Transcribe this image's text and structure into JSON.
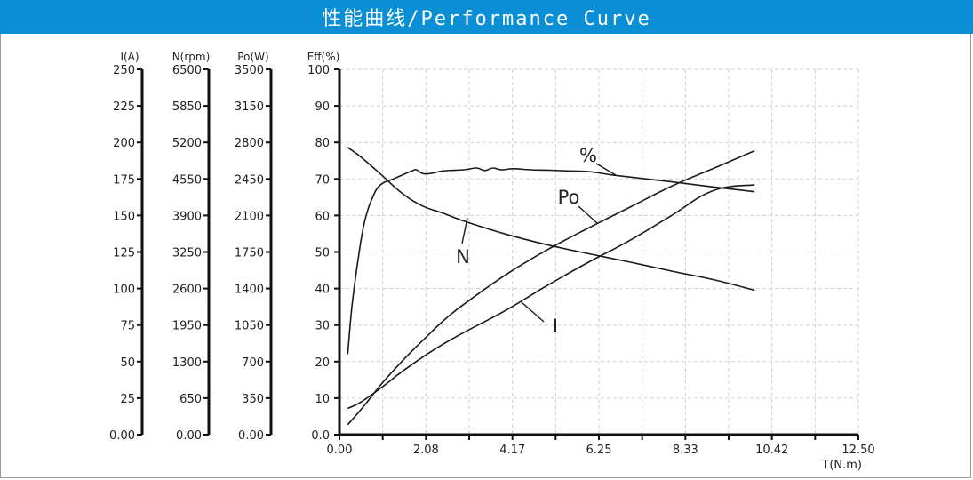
{
  "title": "性能曲线/Performance Curve",
  "chart_data": {
    "type": "line",
    "xlabel": "T(N.m)",
    "x_ticks": [
      "0.00",
      "2.08",
      "4.17",
      "6.25",
      "8.33",
      "10.42",
      "12.50"
    ],
    "xlim": [
      0,
      12.5
    ],
    "grid": true,
    "axes": [
      {
        "label": "I(A)",
        "ticks": [
          "250",
          "225",
          "200",
          "175",
          "150",
          "125",
          "100",
          "75",
          "50",
          "25",
          "0.00"
        ],
        "range": [
          0,
          250
        ]
      },
      {
        "label": "N(rpm)",
        "ticks": [
          "6500",
          "5850",
          "5200",
          "4550",
          "3900",
          "3250",
          "2600",
          "1950",
          "1300",
          "650",
          "0.00"
        ],
        "range": [
          0,
          6500
        ]
      },
      {
        "label": "Po(W)",
        "ticks": [
          "3500",
          "3150",
          "2800",
          "2450",
          "2100",
          "1750",
          "1400",
          "1050",
          "700",
          "350",
          "0.00"
        ],
        "range": [
          0,
          3500
        ]
      },
      {
        "label": "Eff(%)",
        "ticks": [
          "100",
          "90",
          "80",
          "70",
          "60",
          "50",
          "40",
          "30",
          "20",
          "10",
          "0.0"
        ],
        "range": [
          0,
          100
        ]
      }
    ],
    "series": [
      {
        "name": "%",
        "axis": "Eff(%)",
        "x": [
          0.2,
          0.3,
          0.45,
          0.6,
          0.8,
          1.0,
          1.3,
          1.6,
          1.75,
          1.85,
          2.0,
          2.2,
          2.5,
          3.0,
          3.3,
          3.5,
          3.7,
          3.9,
          4.2,
          4.6,
          5.0,
          5.5,
          6.0,
          6.5,
          7.0,
          8.0,
          9.0,
          10.0
        ],
        "y": [
          22,
          35,
          48,
          58,
          65,
          68.5,
          70,
          71.5,
          72.2,
          72.5,
          71.5,
          71.5,
          72.2,
          72.5,
          73,
          72.3,
          73,
          72.5,
          72.8,
          72.5,
          72.4,
          72.2,
          72,
          71.2,
          70.5,
          69.2,
          67.8,
          66.5
        ]
      },
      {
        "name": "N",
        "axis": "N(rpm)",
        "x": [
          0.2,
          0.5,
          1.0,
          1.5,
          2.0,
          2.5,
          3.0,
          4.0,
          5.0,
          6.0,
          7.0,
          8.0,
          9.0,
          10.0
        ],
        "y": [
          5110,
          4950,
          4630,
          4300,
          4070,
          3940,
          3800,
          3570,
          3380,
          3220,
          3070,
          2910,
          2760,
          2570
        ]
      },
      {
        "name": "Po",
        "axis": "Po(W)",
        "x": [
          0.2,
          0.6,
          1.0,
          1.5,
          2.0,
          2.5,
          3.0,
          4.0,
          5.0,
          6.0,
          7.0,
          8.0,
          9.0,
          10.0
        ],
        "y": [
          95,
          280,
          480,
          700,
          900,
          1090,
          1250,
          1530,
          1770,
          1980,
          2180,
          2380,
          2550,
          2720
        ]
      },
      {
        "name": "I",
        "axis": "I(A)",
        "x": [
          0.2,
          0.5,
          1.0,
          1.5,
          2.0,
          2.5,
          3.0,
          4.0,
          5.0,
          6.0,
          7.0,
          8.0,
          9.0,
          10.0
        ],
        "y": [
          18,
          22,
          32,
          43,
          53,
          62,
          70,
          85,
          102,
          118,
          133,
          150,
          167,
          171
        ]
      }
    ],
    "series_labels": [
      "%",
      "Po",
      "N",
      "I"
    ]
  }
}
